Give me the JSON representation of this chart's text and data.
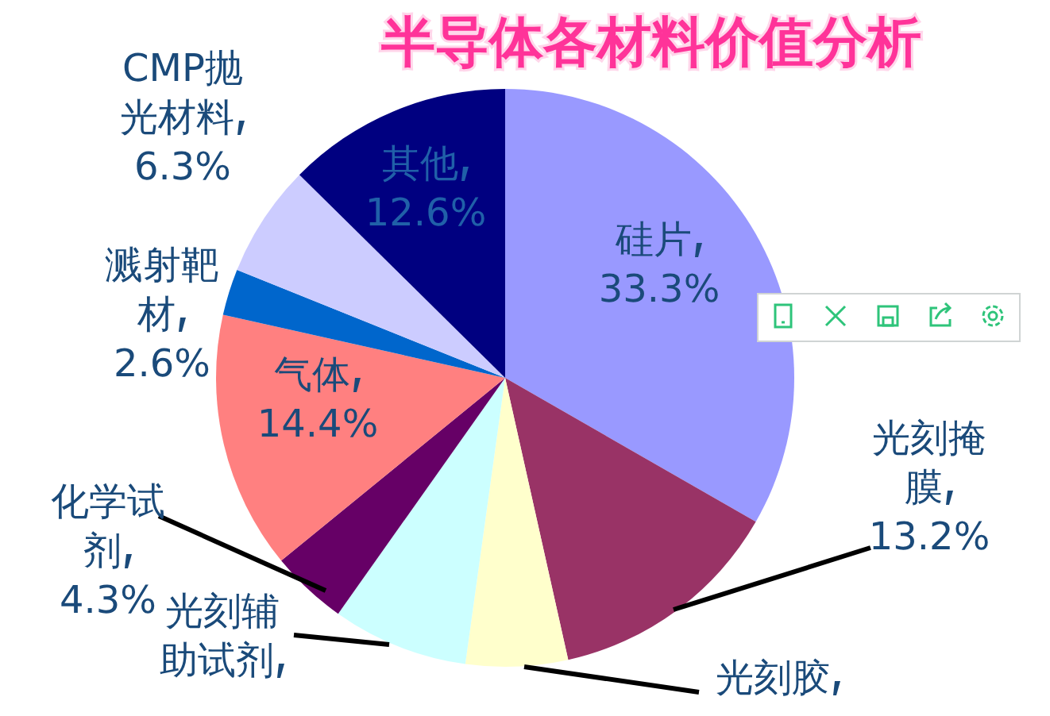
{
  "chart_data": {
    "type": "pie",
    "title": "半导体各材料价值分析",
    "categories": [
      "硅片",
      "光刻掩膜",
      "光刻胶",
      "光刻辅助试剂",
      "化学试剂",
      "气体",
      "溅射靶材",
      "CMP抛光材料",
      "其他"
    ],
    "values": [
      33.3,
      13.2,
      5.7,
      7.6,
      4.3,
      14.4,
      2.6,
      6.3,
      12.6
    ],
    "value_labels": [
      "33.3%",
      "13.2%",
      null,
      null,
      "4.3%",
      "14.4%",
      "2.6%",
      "6.3%",
      "12.6%"
    ],
    "colors": [
      "#9999ff",
      "#993366",
      "#ffffcc",
      "#ccffff",
      "#660066",
      "#ff8080",
      "#0066cc",
      "#ccccff",
      "#000080"
    ]
  }
}
